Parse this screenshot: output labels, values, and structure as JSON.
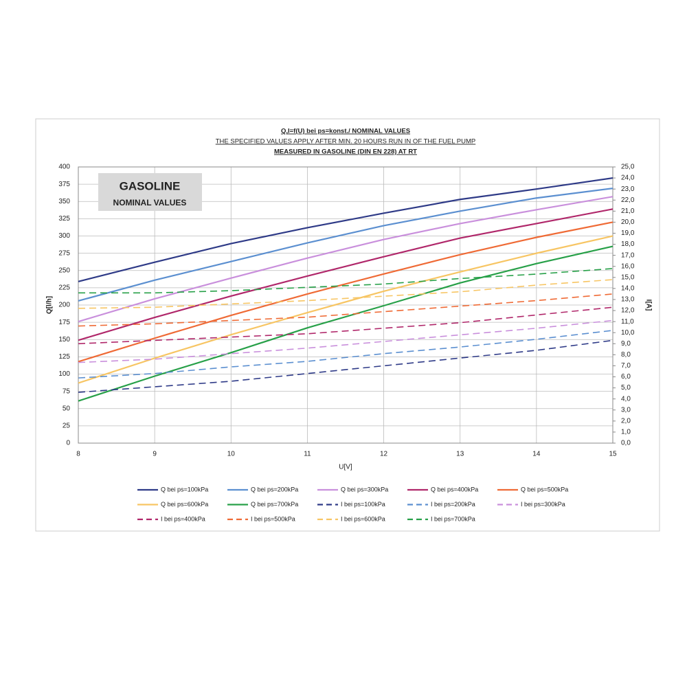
{
  "chart_data": {
    "type": "line",
    "title": "Q,I=f(U) bei ps=konst./ NOMINAL VALUES",
    "subtitle": "THE SPECIFIED VALUES APPLY AFTER MIN. 20 HOURS RUN IN OF THE FUEL PUMP",
    "subtitle2": "MEASURED IN GASOLINE (DIN EN 228) AT RT",
    "annotation": {
      "title": "GASOLINE",
      "subtitle": "NOMINAL VALUES"
    },
    "xlabel": "U[V]",
    "ylabel": "Q[l/h]",
    "y2label": "I[A]",
    "x": [
      8,
      9,
      10,
      11,
      12,
      13,
      14,
      15
    ],
    "xlim": [
      8,
      15
    ],
    "xticks": [
      8,
      9,
      10,
      11,
      12,
      13,
      14,
      15
    ],
    "ylim": [
      0,
      400
    ],
    "yticks": [
      0,
      25,
      50,
      75,
      100,
      125,
      150,
      175,
      200,
      225,
      250,
      275,
      300,
      325,
      350,
      375,
      400
    ],
    "y2lim": [
      0,
      25
    ],
    "y2ticks": [
      {
        "value": 0,
        "label": "0,0"
      },
      {
        "value": 1,
        "label": "1,0"
      },
      {
        "value": 2,
        "label": "2,0"
      },
      {
        "value": 3,
        "label": "3,0"
      },
      {
        "value": 4,
        "label": "4,0"
      },
      {
        "value": 5,
        "label": "5,0"
      },
      {
        "value": 6,
        "label": "6,0"
      },
      {
        "value": 7,
        "label": "7,0"
      },
      {
        "value": 8,
        "label": "8,0"
      },
      {
        "value": 9,
        "label": "9,0"
      },
      {
        "value": 10,
        "label": "10,0"
      },
      {
        "value": 11,
        "label": "11,0"
      },
      {
        "value": 12,
        "label": "12,0"
      },
      {
        "value": 13,
        "label": "13,0"
      },
      {
        "value": 14,
        "label": "14,0"
      },
      {
        "value": 15,
        "label": "15,0"
      },
      {
        "value": 16,
        "label": "16,0"
      },
      {
        "value": 17,
        "label": "17,0"
      },
      {
        "value": 18,
        "label": "18,0"
      },
      {
        "value": 19,
        "label": "19,0"
      },
      {
        "value": 20,
        "label": "20,0"
      },
      {
        "value": 21,
        "label": "21,0"
      },
      {
        "value": 22,
        "label": "22,0"
      },
      {
        "value": 23,
        "label": "23,0"
      },
      {
        "value": 24,
        "label": "24,0"
      },
      {
        "value": 25,
        "label": "25,0"
      }
    ],
    "grid": true,
    "legend": "bottom",
    "series": [
      {
        "name": "Q bei ps=100kPa",
        "color": "#2e3a87",
        "style": "solid",
        "values": [
          234,
          262,
          289,
          312,
          333,
          353,
          368,
          384
        ]
      },
      {
        "name": "Q bei ps=200kPa",
        "color": "#5b8fd0",
        "style": "solid",
        "values": [
          206,
          236,
          263,
          290,
          315,
          336,
          355,
          369
        ]
      },
      {
        "name": "Q bei ps=300kPa",
        "color": "#c98fdc",
        "style": "solid",
        "values": [
          176,
          209,
          239,
          268,
          295,
          318,
          338,
          357
        ]
      },
      {
        "name": "Q bei ps=400kPa",
        "color": "#b0276a",
        "style": "solid",
        "values": [
          149,
          182,
          213,
          242,
          270,
          297,
          318,
          339
        ]
      },
      {
        "name": "Q bei ps=500kPa",
        "color": "#ef6a35",
        "style": "solid",
        "values": [
          118,
          152,
          185,
          216,
          245,
          273,
          298,
          320
        ]
      },
      {
        "name": "Q bei ps=600kPa",
        "color": "#f7c563",
        "style": "solid",
        "values": [
          87,
          123,
          157,
          189,
          220,
          248,
          275,
          300
        ]
      },
      {
        "name": "Q bei ps=700kPa",
        "color": "#27a048",
        "style": "solid",
        "values": [
          61,
          97,
          131,
          167,
          199,
          232,
          260,
          285
        ]
      },
      {
        "name": "I bei ps=100kPa",
        "color": "#2e3a87",
        "style": "dashed",
        "axis": "y2",
        "values": [
          4.6,
          5.1,
          5.6,
          6.3,
          7.0,
          7.7,
          8.4,
          9.3
        ]
      },
      {
        "name": "I bei ps=200kPa",
        "color": "#5b8fd0",
        "style": "dashed",
        "axis": "y2",
        "values": [
          5.9,
          6.3,
          6.9,
          7.4,
          8.1,
          8.7,
          9.4,
          10.2
        ]
      },
      {
        "name": "I bei ps=300kPa",
        "color": "#c98fdc",
        "style": "dashed",
        "axis": "y2",
        "values": [
          7.3,
          7.6,
          8.1,
          8.6,
          9.2,
          9.8,
          10.4,
          11.1
        ]
      },
      {
        "name": "I bei ps=400kPa",
        "color": "#b0276a",
        "style": "dashed",
        "axis": "y2",
        "values": [
          9.0,
          9.3,
          9.6,
          9.9,
          10.4,
          10.9,
          11.6,
          12.3
        ]
      },
      {
        "name": "I bei ps=500kPa",
        "color": "#ef6a35",
        "style": "dashed",
        "axis": "y2",
        "values": [
          10.6,
          10.8,
          11.1,
          11.4,
          11.9,
          12.4,
          12.9,
          13.5
        ]
      },
      {
        "name": "I bei ps=600kPa",
        "color": "#f7c563",
        "style": "dashed",
        "axis": "y2",
        "values": [
          12.2,
          12.3,
          12.6,
          12.9,
          13.3,
          13.7,
          14.3,
          14.8
        ]
      },
      {
        "name": "I bei ps=700kPa",
        "color": "#27a048",
        "style": "dashed",
        "axis": "y2",
        "values": [
          13.6,
          13.6,
          13.8,
          14.1,
          14.4,
          14.9,
          15.3,
          15.8
        ]
      }
    ]
  }
}
